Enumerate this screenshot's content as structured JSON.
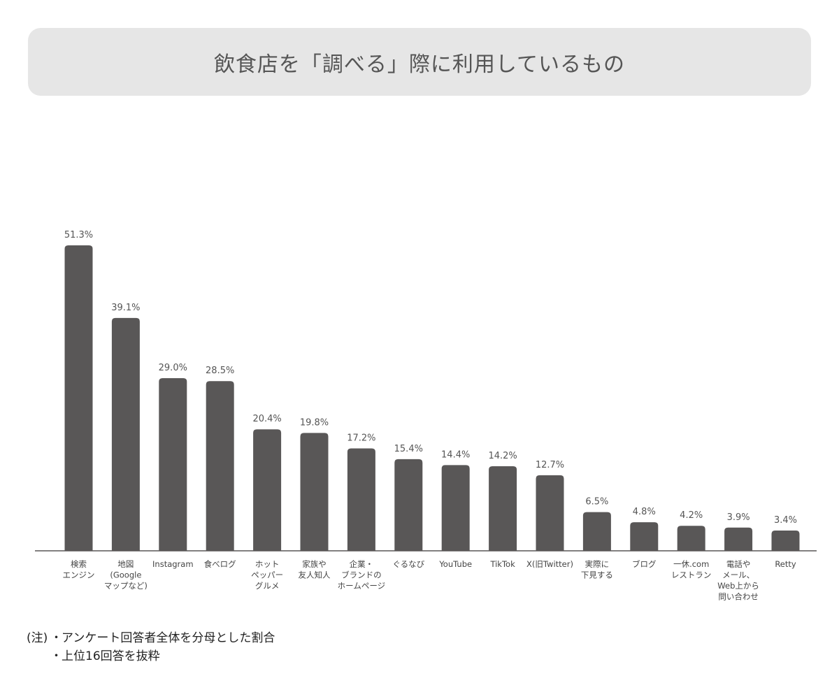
{
  "title": "飲食店を「調べる」際に利用しているもの",
  "chart_data": {
    "type": "bar",
    "categories": [
      [
        "検索",
        "エンジン"
      ],
      [
        "地図",
        "(Google",
        "マップなど)"
      ],
      [
        "Instagram"
      ],
      [
        "食べログ"
      ],
      [
        "ホット",
        "ペッパー",
        "グルメ"
      ],
      [
        "家族や",
        "友人知人"
      ],
      [
        "企業・",
        "ブランドの",
        "ホームページ"
      ],
      [
        "ぐるなび"
      ],
      [
        "YouTube"
      ],
      [
        "TikTok"
      ],
      [
        "X(旧Twitter)"
      ],
      [
        "実際に",
        "下見する"
      ],
      [
        "ブログ"
      ],
      [
        "一休.com",
        "レストラン"
      ],
      [
        "電話や",
        "メール、",
        "Web上から",
        "問い合わせ"
      ],
      [
        "Retty"
      ]
    ],
    "values": [
      51.3,
      39.1,
      29.0,
      28.5,
      20.4,
      19.8,
      17.2,
      15.4,
      14.4,
      14.2,
      12.7,
      6.5,
      4.8,
      4.2,
      3.9,
      3.4
    ],
    "value_labels": [
      "51.3%",
      "39.1%",
      "29.0%",
      "28.5%",
      "20.4%",
      "19.8%",
      "17.2%",
      "15.4%",
      "14.4%",
      "14.2%",
      "12.7%",
      "6.5%",
      "4.8%",
      "4.2%",
      "3.9%",
      "3.4%"
    ],
    "unit": "%",
    "ylim": [
      0,
      51.3
    ],
    "bar_color": "#595757",
    "axis_color": "#595757",
    "grid": false
  },
  "notes": {
    "prefix": "(注)",
    "dot": "・",
    "lines": [
      "アンケート回答者全体を分母とした割合",
      "上位16回答を抜粋"
    ]
  }
}
